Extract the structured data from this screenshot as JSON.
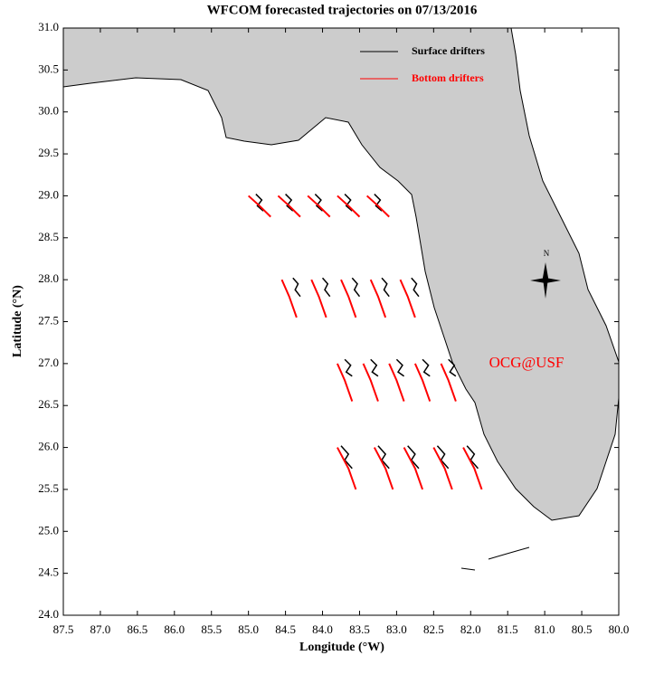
{
  "chart_data": {
    "type": "trajectory-map",
    "title": "WFCOM forecasted trajectories on 07/13/2016",
    "xlabel": "Longitude (°W)",
    "ylabel": "Latitude (°N)",
    "annotation": "OCG@USF",
    "compass_label": "N",
    "xlim": [
      87.5,
      80.0
    ],
    "ylim": [
      24.0,
      31.0
    ],
    "xticks": [
      87.5,
      {
        "value": 87,
        "label": "87.0"
      },
      86.5,
      {
        "value": 86,
        "label": "86.0"
      },
      85.5,
      {
        "value": 85,
        "label": "85.0"
      },
      84.5,
      {
        "value": 84,
        "label": "84.0"
      },
      83.5,
      {
        "value": 83,
        "label": "83.0"
      },
      82.5,
      {
        "value": 82,
        "label": "82.0"
      },
      81.5,
      {
        "value": 81,
        "label": "81.0"
      },
      80.5,
      {
        "value": 80,
        "label": "80.0"
      }
    ],
    "yticks": [
      {
        "value": 24,
        "label": "24.0"
      },
      24.5,
      {
        "value": 25,
        "label": "25.0"
      },
      25.5,
      {
        "value": 26,
        "label": "26.0"
      },
      26.5,
      {
        "value": 27,
        "label": "27.0"
      },
      27.5,
      {
        "value": 28,
        "label": "28.0"
      },
      28.5,
      {
        "value": 29,
        "label": "29.0"
      },
      29.5,
      {
        "value": 30,
        "label": "30.0"
      },
      30.5,
      {
        "value": 31,
        "label": "31.0"
      }
    ],
    "series": [
      {
        "name": "Surface drifters",
        "color": "#000000",
        "tracks": [
          {
            "x": [
              84.9,
              84.82,
              84.88,
              84.8
            ],
            "y": [
              29.02,
              28.95,
              28.88,
              28.82
            ]
          },
          {
            "x": [
              84.5,
              84.42,
              84.48,
              84.4
            ],
            "y": [
              29.02,
              28.95,
              28.88,
              28.82
            ]
          },
          {
            "x": [
              84.1,
              84.02,
              84.08,
              84.0
            ],
            "y": [
              29.02,
              28.95,
              28.88,
              28.82
            ]
          },
          {
            "x": [
              83.7,
              83.62,
              83.68,
              83.6
            ],
            "y": [
              29.02,
              28.95,
              28.88,
              28.82
            ]
          },
          {
            "x": [
              83.3,
              83.22,
              83.28,
              83.2
            ],
            "y": [
              29.02,
              28.95,
              28.88,
              28.82
            ]
          },
          {
            "x": [
              84.4,
              84.33,
              84.37,
              84.3
            ],
            "y": [
              28.02,
              27.95,
              27.88,
              27.8
            ]
          },
          {
            "x": [
              84.0,
              83.93,
              83.97,
              83.9
            ],
            "y": [
              28.02,
              27.95,
              27.88,
              27.8
            ]
          },
          {
            "x": [
              83.6,
              83.53,
              83.57,
              83.5
            ],
            "y": [
              28.02,
              27.95,
              27.88,
              27.8
            ]
          },
          {
            "x": [
              83.2,
              83.13,
              83.17,
              83.1
            ],
            "y": [
              28.02,
              27.95,
              27.88,
              27.8
            ]
          },
          {
            "x": [
              82.8,
              82.73,
              82.77,
              82.7
            ],
            "y": [
              28.02,
              27.95,
              27.88,
              27.8
            ]
          },
          {
            "x": [
              83.7,
              83.62,
              83.68,
              83.6
            ],
            "y": [
              27.05,
              26.98,
              26.9,
              26.85
            ]
          },
          {
            "x": [
              83.35,
              83.27,
              83.33,
              83.25
            ],
            "y": [
              27.05,
              26.98,
              26.9,
              26.85
            ]
          },
          {
            "x": [
              83.0,
              82.92,
              82.98,
              82.9
            ],
            "y": [
              27.05,
              26.98,
              26.9,
              26.85
            ]
          },
          {
            "x": [
              82.65,
              82.57,
              82.63,
              82.55
            ],
            "y": [
              27.05,
              26.98,
              26.9,
              26.85
            ]
          },
          {
            "x": [
              82.3,
              82.22,
              82.28,
              82.2
            ],
            "y": [
              27.05,
              26.98,
              26.9,
              26.85
            ]
          },
          {
            "x": [
              83.75,
              83.65,
              83.7,
              83.6
            ],
            "y": [
              26.02,
              25.92,
              25.85,
              25.75
            ]
          },
          {
            "x": [
              83.25,
              83.15,
              83.2,
              83.1
            ],
            "y": [
              26.02,
              25.92,
              25.85,
              25.75
            ]
          },
          {
            "x": [
              82.85,
              82.75,
              82.8,
              82.7
            ],
            "y": [
              26.02,
              25.92,
              25.85,
              25.75
            ]
          },
          {
            "x": [
              82.45,
              82.35,
              82.4,
              82.3
            ],
            "y": [
              26.02,
              25.92,
              25.85,
              25.75
            ]
          },
          {
            "x": [
              82.05,
              81.95,
              82.0,
              81.9
            ],
            "y": [
              26.02,
              25.92,
              25.85,
              25.75
            ]
          }
        ]
      },
      {
        "name": "Bottom drifters",
        "color": "#ff0000",
        "tracks": [
          {
            "x": [
              85.0,
              84.85,
              84.7
            ],
            "y": [
              29.0,
              28.88,
              28.75
            ]
          },
          {
            "x": [
              84.6,
              84.45,
              84.3
            ],
            "y": [
              29.0,
              28.88,
              28.75
            ]
          },
          {
            "x": [
              84.2,
              84.05,
              83.9
            ],
            "y": [
              29.0,
              28.88,
              28.75
            ]
          },
          {
            "x": [
              83.8,
              83.65,
              83.5
            ],
            "y": [
              29.0,
              28.88,
              28.75
            ]
          },
          {
            "x": [
              83.4,
              83.25,
              83.1
            ],
            "y": [
              29.0,
              28.88,
              28.75
            ]
          },
          {
            "x": [
              84.55,
              84.45,
              84.35
            ],
            "y": [
              28.0,
              27.8,
              27.55
            ]
          },
          {
            "x": [
              84.15,
              84.05,
              83.95
            ],
            "y": [
              28.0,
              27.8,
              27.55
            ]
          },
          {
            "x": [
              83.75,
              83.65,
              83.55
            ],
            "y": [
              28.0,
              27.8,
              27.55
            ]
          },
          {
            "x": [
              83.35,
              83.25,
              83.15
            ],
            "y": [
              28.0,
              27.8,
              27.55
            ]
          },
          {
            "x": [
              82.95,
              82.85,
              82.75
            ],
            "y": [
              28.0,
              27.8,
              27.55
            ]
          },
          {
            "x": [
              83.8,
              83.7,
              83.6
            ],
            "y": [
              27.0,
              26.8,
              26.55
            ]
          },
          {
            "x": [
              83.45,
              83.35,
              83.25
            ],
            "y": [
              27.0,
              26.8,
              26.55
            ]
          },
          {
            "x": [
              83.1,
              83.0,
              82.9
            ],
            "y": [
              27.0,
              26.8,
              26.55
            ]
          },
          {
            "x": [
              82.75,
              82.65,
              82.55
            ],
            "y": [
              27.0,
              26.8,
              26.55
            ]
          },
          {
            "x": [
              82.4,
              82.3,
              82.2
            ],
            "y": [
              27.0,
              26.8,
              26.55
            ]
          },
          {
            "x": [
              83.8,
              83.65,
              83.55
            ],
            "y": [
              26.0,
              25.75,
              25.5
            ]
          },
          {
            "x": [
              83.3,
              83.15,
              83.05
            ],
            "y": [
              26.0,
              25.75,
              25.5
            ]
          },
          {
            "x": [
              82.9,
              82.75,
              82.65
            ],
            "y": [
              26.0,
              25.75,
              25.5
            ]
          },
          {
            "x": [
              82.5,
              82.35,
              82.25
            ],
            "y": [
              26.0,
              25.75,
              25.5
            ]
          },
          {
            "x": [
              82.1,
              81.95,
              81.85
            ],
            "y": [
              26.0,
              25.75,
              25.5
            ]
          }
        ]
      }
    ]
  }
}
